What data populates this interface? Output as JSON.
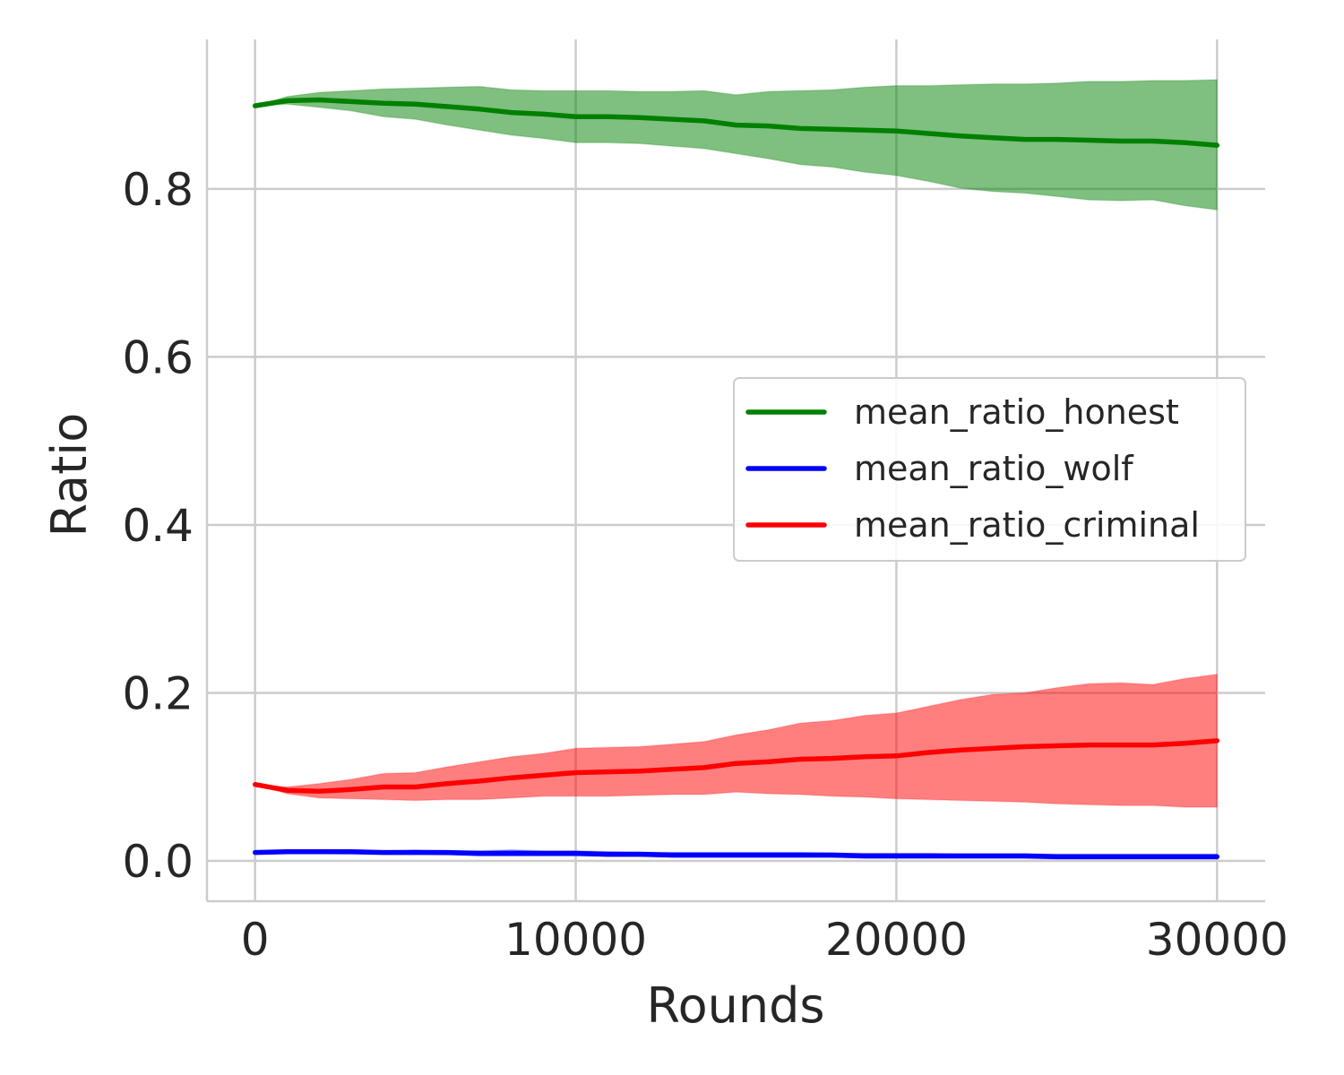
{
  "chart_data": {
    "type": "line",
    "xlabel": "Rounds",
    "ylabel": "Ratio",
    "xlim": [
      -1500,
      31500
    ],
    "ylim": [
      -0.048,
      0.978
    ],
    "xticks": [
      0,
      10000,
      20000,
      30000
    ],
    "xtick_labels": [
      "0",
      "10000",
      "20000",
      "30000"
    ],
    "yticks": [
      0.0,
      0.2,
      0.4,
      0.6,
      0.8
    ],
    "ytick_labels": [
      "0.0",
      "0.2",
      "0.4",
      "0.6",
      "0.8"
    ],
    "grid": true,
    "legend_position": "center-right",
    "x": [
      0,
      1000,
      2000,
      3000,
      4000,
      5000,
      6000,
      7000,
      8000,
      9000,
      10000,
      11000,
      12000,
      13000,
      14000,
      15000,
      16000,
      17000,
      18000,
      19000,
      20000,
      21000,
      22000,
      23000,
      24000,
      25000,
      26000,
      27000,
      28000,
      29000,
      30000
    ],
    "series": [
      {
        "name": "mean_ratio_honest",
        "color": "#008000",
        "band_color": "#008000",
        "mean": [
          0.899,
          0.905,
          0.906,
          0.904,
          0.902,
          0.901,
          0.898,
          0.895,
          0.891,
          0.889,
          0.886,
          0.886,
          0.885,
          0.883,
          0.881,
          0.876,
          0.875,
          0.872,
          0.871,
          0.87,
          0.869,
          0.866,
          0.863,
          0.861,
          0.859,
          0.859,
          0.858,
          0.857,
          0.857,
          0.855,
          0.852
        ],
        "upper": [
          0.899,
          0.91,
          0.915,
          0.917,
          0.919,
          0.92,
          0.921,
          0.922,
          0.918,
          0.917,
          0.917,
          0.917,
          0.916,
          0.916,
          0.917,
          0.912,
          0.916,
          0.917,
          0.918,
          0.921,
          0.923,
          0.923,
          0.924,
          0.925,
          0.925,
          0.926,
          0.928,
          0.928,
          0.929,
          0.929,
          0.93
        ],
        "lower": [
          0.899,
          0.901,
          0.897,
          0.893,
          0.886,
          0.883,
          0.876,
          0.87,
          0.864,
          0.86,
          0.855,
          0.855,
          0.854,
          0.851,
          0.848,
          0.842,
          0.836,
          0.829,
          0.826,
          0.82,
          0.816,
          0.809,
          0.801,
          0.797,
          0.795,
          0.791,
          0.787,
          0.786,
          0.787,
          0.78,
          0.775
        ]
      },
      {
        "name": "mean_ratio_wolf",
        "color": "#0000ff",
        "band_color": "#0000ff",
        "mean": [
          0.01,
          0.011,
          0.011,
          0.011,
          0.01,
          0.01,
          0.01,
          0.009,
          0.009,
          0.009,
          0.009,
          0.008,
          0.008,
          0.007,
          0.007,
          0.007,
          0.007,
          0.007,
          0.007,
          0.006,
          0.006,
          0.006,
          0.006,
          0.006,
          0.006,
          0.005,
          0.005,
          0.005,
          0.005,
          0.005,
          0.005
        ],
        "upper": [
          0.01,
          0.012,
          0.013,
          0.013,
          0.012,
          0.013,
          0.012,
          0.012,
          0.013,
          0.012,
          0.012,
          0.011,
          0.01,
          0.01,
          0.01,
          0.01,
          0.01,
          0.01,
          0.009,
          0.009,
          0.009,
          0.009,
          0.008,
          0.008,
          0.008,
          0.008,
          0.008,
          0.008,
          0.008,
          0.008,
          0.008
        ],
        "lower": [
          0.01,
          0.009,
          0.009,
          0.008,
          0.008,
          0.008,
          0.007,
          0.006,
          0.006,
          0.006,
          0.006,
          0.005,
          0.005,
          0.004,
          0.004,
          0.004,
          0.004,
          0.004,
          0.004,
          0.003,
          0.003,
          0.003,
          0.003,
          0.003,
          0.003,
          0.002,
          0.002,
          0.002,
          0.002,
          0.002,
          0.002
        ]
      },
      {
        "name": "mean_ratio_criminal",
        "color": "#ff0000",
        "band_color": "#ff0000",
        "mean": [
          0.091,
          0.084,
          0.083,
          0.085,
          0.088,
          0.088,
          0.092,
          0.095,
          0.099,
          0.102,
          0.105,
          0.106,
          0.107,
          0.109,
          0.111,
          0.116,
          0.118,
          0.121,
          0.122,
          0.124,
          0.125,
          0.129,
          0.132,
          0.134,
          0.136,
          0.137,
          0.138,
          0.138,
          0.138,
          0.14,
          0.143
        ],
        "upper": [
          0.091,
          0.088,
          0.092,
          0.097,
          0.104,
          0.105,
          0.112,
          0.118,
          0.124,
          0.128,
          0.134,
          0.135,
          0.136,
          0.139,
          0.142,
          0.15,
          0.156,
          0.164,
          0.167,
          0.173,
          0.176,
          0.184,
          0.192,
          0.198,
          0.2,
          0.206,
          0.211,
          0.212,
          0.21,
          0.217,
          0.222
        ],
        "lower": [
          0.091,
          0.08,
          0.075,
          0.074,
          0.073,
          0.072,
          0.073,
          0.073,
          0.075,
          0.077,
          0.077,
          0.077,
          0.078,
          0.079,
          0.079,
          0.082,
          0.08,
          0.079,
          0.077,
          0.076,
          0.074,
          0.073,
          0.072,
          0.071,
          0.07,
          0.068,
          0.067,
          0.066,
          0.066,
          0.064,
          0.064
        ]
      }
    ]
  }
}
